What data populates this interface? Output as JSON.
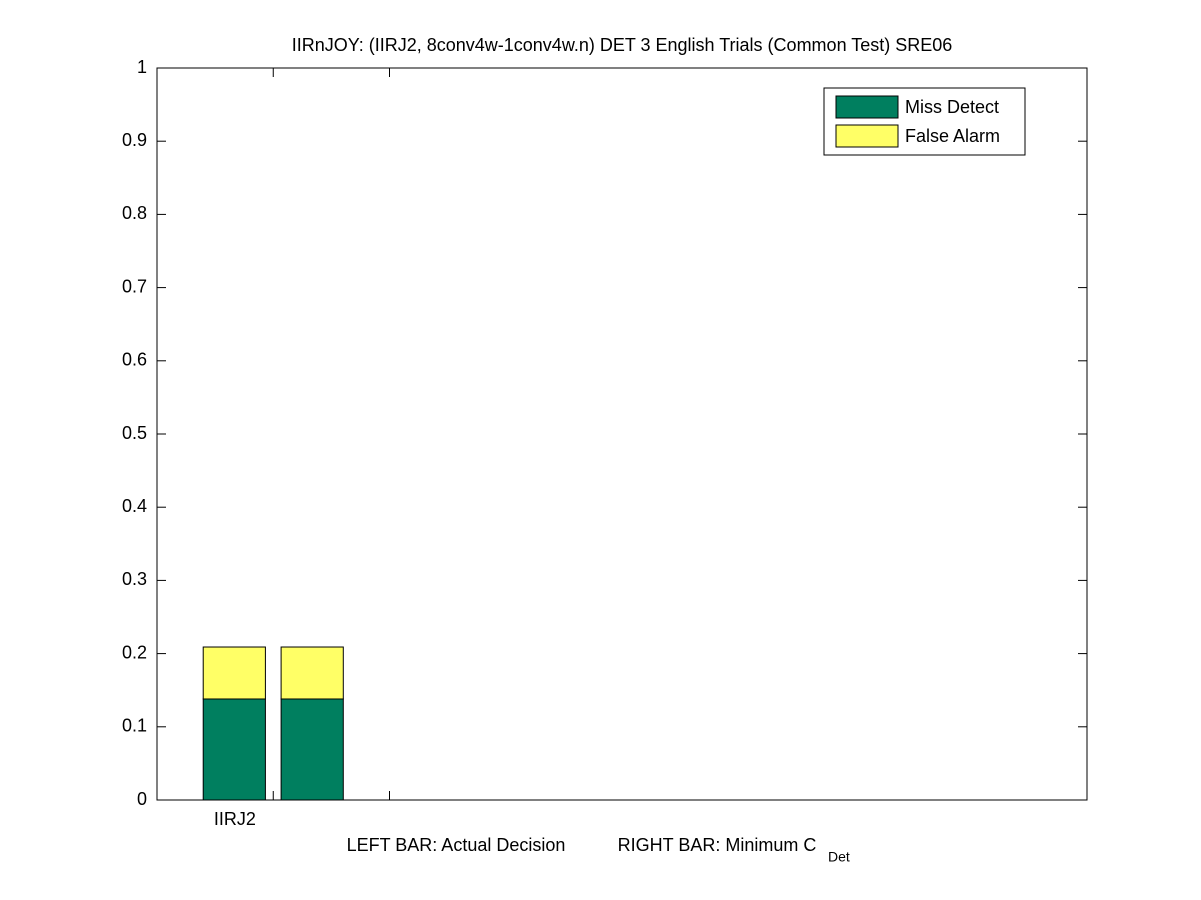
{
  "chart_data": {
    "type": "stacked_pair_bar",
    "title": "IIRnJOY: (IIRJ2, 8conv4w-1conv4w.n) DET 3 English Trials (Common Test) SRE06",
    "xlabel_left": "LEFT BAR: Actual Decision",
    "xlabel_right": "RIGHT BAR: Minimum C",
    "xlabel_subscript": "Det",
    "categories": [
      "IIRJ2",
      null
    ],
    "x": [
      1,
      2
    ],
    "xlim": [
      0,
      8
    ],
    "series": [
      {
        "name": "Miss Detect",
        "color": "#007f5f",
        "values": [
          [
            0.138,
            0.138
          ],
          null
        ]
      },
      {
        "name": "False Alarm",
        "color": "#ffff66",
        "values": [
          [
            0.071,
            0.071
          ],
          null
        ]
      }
    ],
    "ylim": [
      0,
      1
    ],
    "yticks": [
      0,
      0.1,
      0.2,
      0.3,
      0.4,
      0.5,
      0.6,
      0.7,
      0.8,
      0.9,
      1
    ],
    "grid": false,
    "legend": "upper-right"
  }
}
